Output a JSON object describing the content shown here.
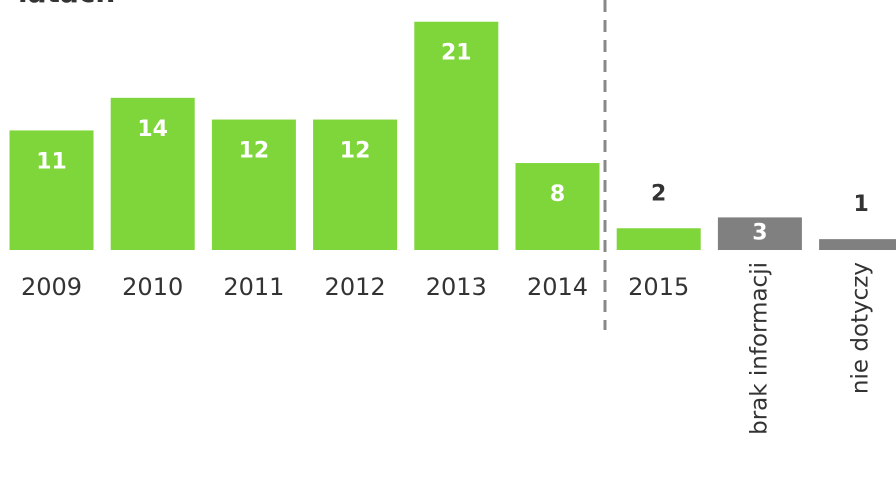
{
  "chart_data": {
    "type": "bar",
    "title": "latach",
    "categories": [
      "2009",
      "2010",
      "2011",
      "2012",
      "2013",
      "2014",
      "2015",
      "brak informacji",
      "nie dotyczy"
    ],
    "values": [
      11,
      14,
      12,
      12,
      21,
      8,
      2,
      3,
      1
    ],
    "colors": [
      "#7ed63a",
      "#7ed63a",
      "#7ed63a",
      "#7ed63a",
      "#7ed63a",
      "#7ed63a",
      "#7ed63a",
      "#808080",
      "#808080"
    ]
  }
}
